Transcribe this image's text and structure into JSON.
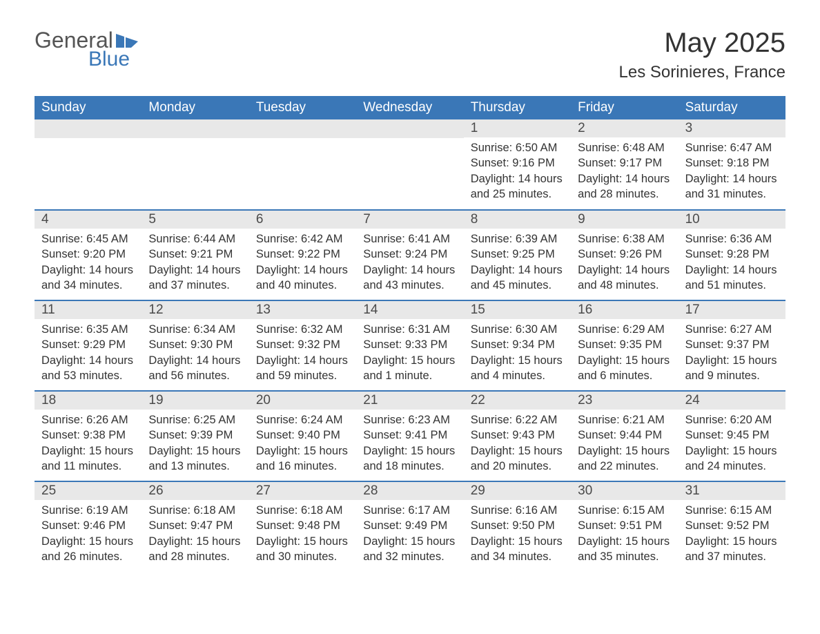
{
  "logo": {
    "general": "General",
    "blue": "Blue",
    "flag_color": "#3a77b7"
  },
  "title": "May 2025",
  "location": "Les Sorinieres, France",
  "colors": {
    "header_bg": "#3a77b7",
    "header_text": "#ffffff",
    "daynum_bg": "#e8e8e8",
    "border": "#3a77b7",
    "body_text": "#333333",
    "background": "#ffffff"
  },
  "weekdays": [
    "Sunday",
    "Monday",
    "Tuesday",
    "Wednesday",
    "Thursday",
    "Friday",
    "Saturday"
  ],
  "labels": {
    "sunrise": "Sunrise:",
    "sunset": "Sunset:",
    "daylight": "Daylight:"
  },
  "weeks": [
    [
      null,
      null,
      null,
      null,
      {
        "n": "1",
        "sunrise": "6:50 AM",
        "sunset": "9:16 PM",
        "daylight": "14 hours and 25 minutes."
      },
      {
        "n": "2",
        "sunrise": "6:48 AM",
        "sunset": "9:17 PM",
        "daylight": "14 hours and 28 minutes."
      },
      {
        "n": "3",
        "sunrise": "6:47 AM",
        "sunset": "9:18 PM",
        "daylight": "14 hours and 31 minutes."
      }
    ],
    [
      {
        "n": "4",
        "sunrise": "6:45 AM",
        "sunset": "9:20 PM",
        "daylight": "14 hours and 34 minutes."
      },
      {
        "n": "5",
        "sunrise": "6:44 AM",
        "sunset": "9:21 PM",
        "daylight": "14 hours and 37 minutes."
      },
      {
        "n": "6",
        "sunrise": "6:42 AM",
        "sunset": "9:22 PM",
        "daylight": "14 hours and 40 minutes."
      },
      {
        "n": "7",
        "sunrise": "6:41 AM",
        "sunset": "9:24 PM",
        "daylight": "14 hours and 43 minutes."
      },
      {
        "n": "8",
        "sunrise": "6:39 AM",
        "sunset": "9:25 PM",
        "daylight": "14 hours and 45 minutes."
      },
      {
        "n": "9",
        "sunrise": "6:38 AM",
        "sunset": "9:26 PM",
        "daylight": "14 hours and 48 minutes."
      },
      {
        "n": "10",
        "sunrise": "6:36 AM",
        "sunset": "9:28 PM",
        "daylight": "14 hours and 51 minutes."
      }
    ],
    [
      {
        "n": "11",
        "sunrise": "6:35 AM",
        "sunset": "9:29 PM",
        "daylight": "14 hours and 53 minutes."
      },
      {
        "n": "12",
        "sunrise": "6:34 AM",
        "sunset": "9:30 PM",
        "daylight": "14 hours and 56 minutes."
      },
      {
        "n": "13",
        "sunrise": "6:32 AM",
        "sunset": "9:32 PM",
        "daylight": "14 hours and 59 minutes."
      },
      {
        "n": "14",
        "sunrise": "6:31 AM",
        "sunset": "9:33 PM",
        "daylight": "15 hours and 1 minute."
      },
      {
        "n": "15",
        "sunrise": "6:30 AM",
        "sunset": "9:34 PM",
        "daylight": "15 hours and 4 minutes."
      },
      {
        "n": "16",
        "sunrise": "6:29 AM",
        "sunset": "9:35 PM",
        "daylight": "15 hours and 6 minutes."
      },
      {
        "n": "17",
        "sunrise": "6:27 AM",
        "sunset": "9:37 PM",
        "daylight": "15 hours and 9 minutes."
      }
    ],
    [
      {
        "n": "18",
        "sunrise": "6:26 AM",
        "sunset": "9:38 PM",
        "daylight": "15 hours and 11 minutes."
      },
      {
        "n": "19",
        "sunrise": "6:25 AM",
        "sunset": "9:39 PM",
        "daylight": "15 hours and 13 minutes."
      },
      {
        "n": "20",
        "sunrise": "6:24 AM",
        "sunset": "9:40 PM",
        "daylight": "15 hours and 16 minutes."
      },
      {
        "n": "21",
        "sunrise": "6:23 AM",
        "sunset": "9:41 PM",
        "daylight": "15 hours and 18 minutes."
      },
      {
        "n": "22",
        "sunrise": "6:22 AM",
        "sunset": "9:43 PM",
        "daylight": "15 hours and 20 minutes."
      },
      {
        "n": "23",
        "sunrise": "6:21 AM",
        "sunset": "9:44 PM",
        "daylight": "15 hours and 22 minutes."
      },
      {
        "n": "24",
        "sunrise": "6:20 AM",
        "sunset": "9:45 PM",
        "daylight": "15 hours and 24 minutes."
      }
    ],
    [
      {
        "n": "25",
        "sunrise": "6:19 AM",
        "sunset": "9:46 PM",
        "daylight": "15 hours and 26 minutes."
      },
      {
        "n": "26",
        "sunrise": "6:18 AM",
        "sunset": "9:47 PM",
        "daylight": "15 hours and 28 minutes."
      },
      {
        "n": "27",
        "sunrise": "6:18 AM",
        "sunset": "9:48 PM",
        "daylight": "15 hours and 30 minutes."
      },
      {
        "n": "28",
        "sunrise": "6:17 AM",
        "sunset": "9:49 PM",
        "daylight": "15 hours and 32 minutes."
      },
      {
        "n": "29",
        "sunrise": "6:16 AM",
        "sunset": "9:50 PM",
        "daylight": "15 hours and 34 minutes."
      },
      {
        "n": "30",
        "sunrise": "6:15 AM",
        "sunset": "9:51 PM",
        "daylight": "15 hours and 35 minutes."
      },
      {
        "n": "31",
        "sunrise": "6:15 AM",
        "sunset": "9:52 PM",
        "daylight": "15 hours and 37 minutes."
      }
    ]
  ]
}
